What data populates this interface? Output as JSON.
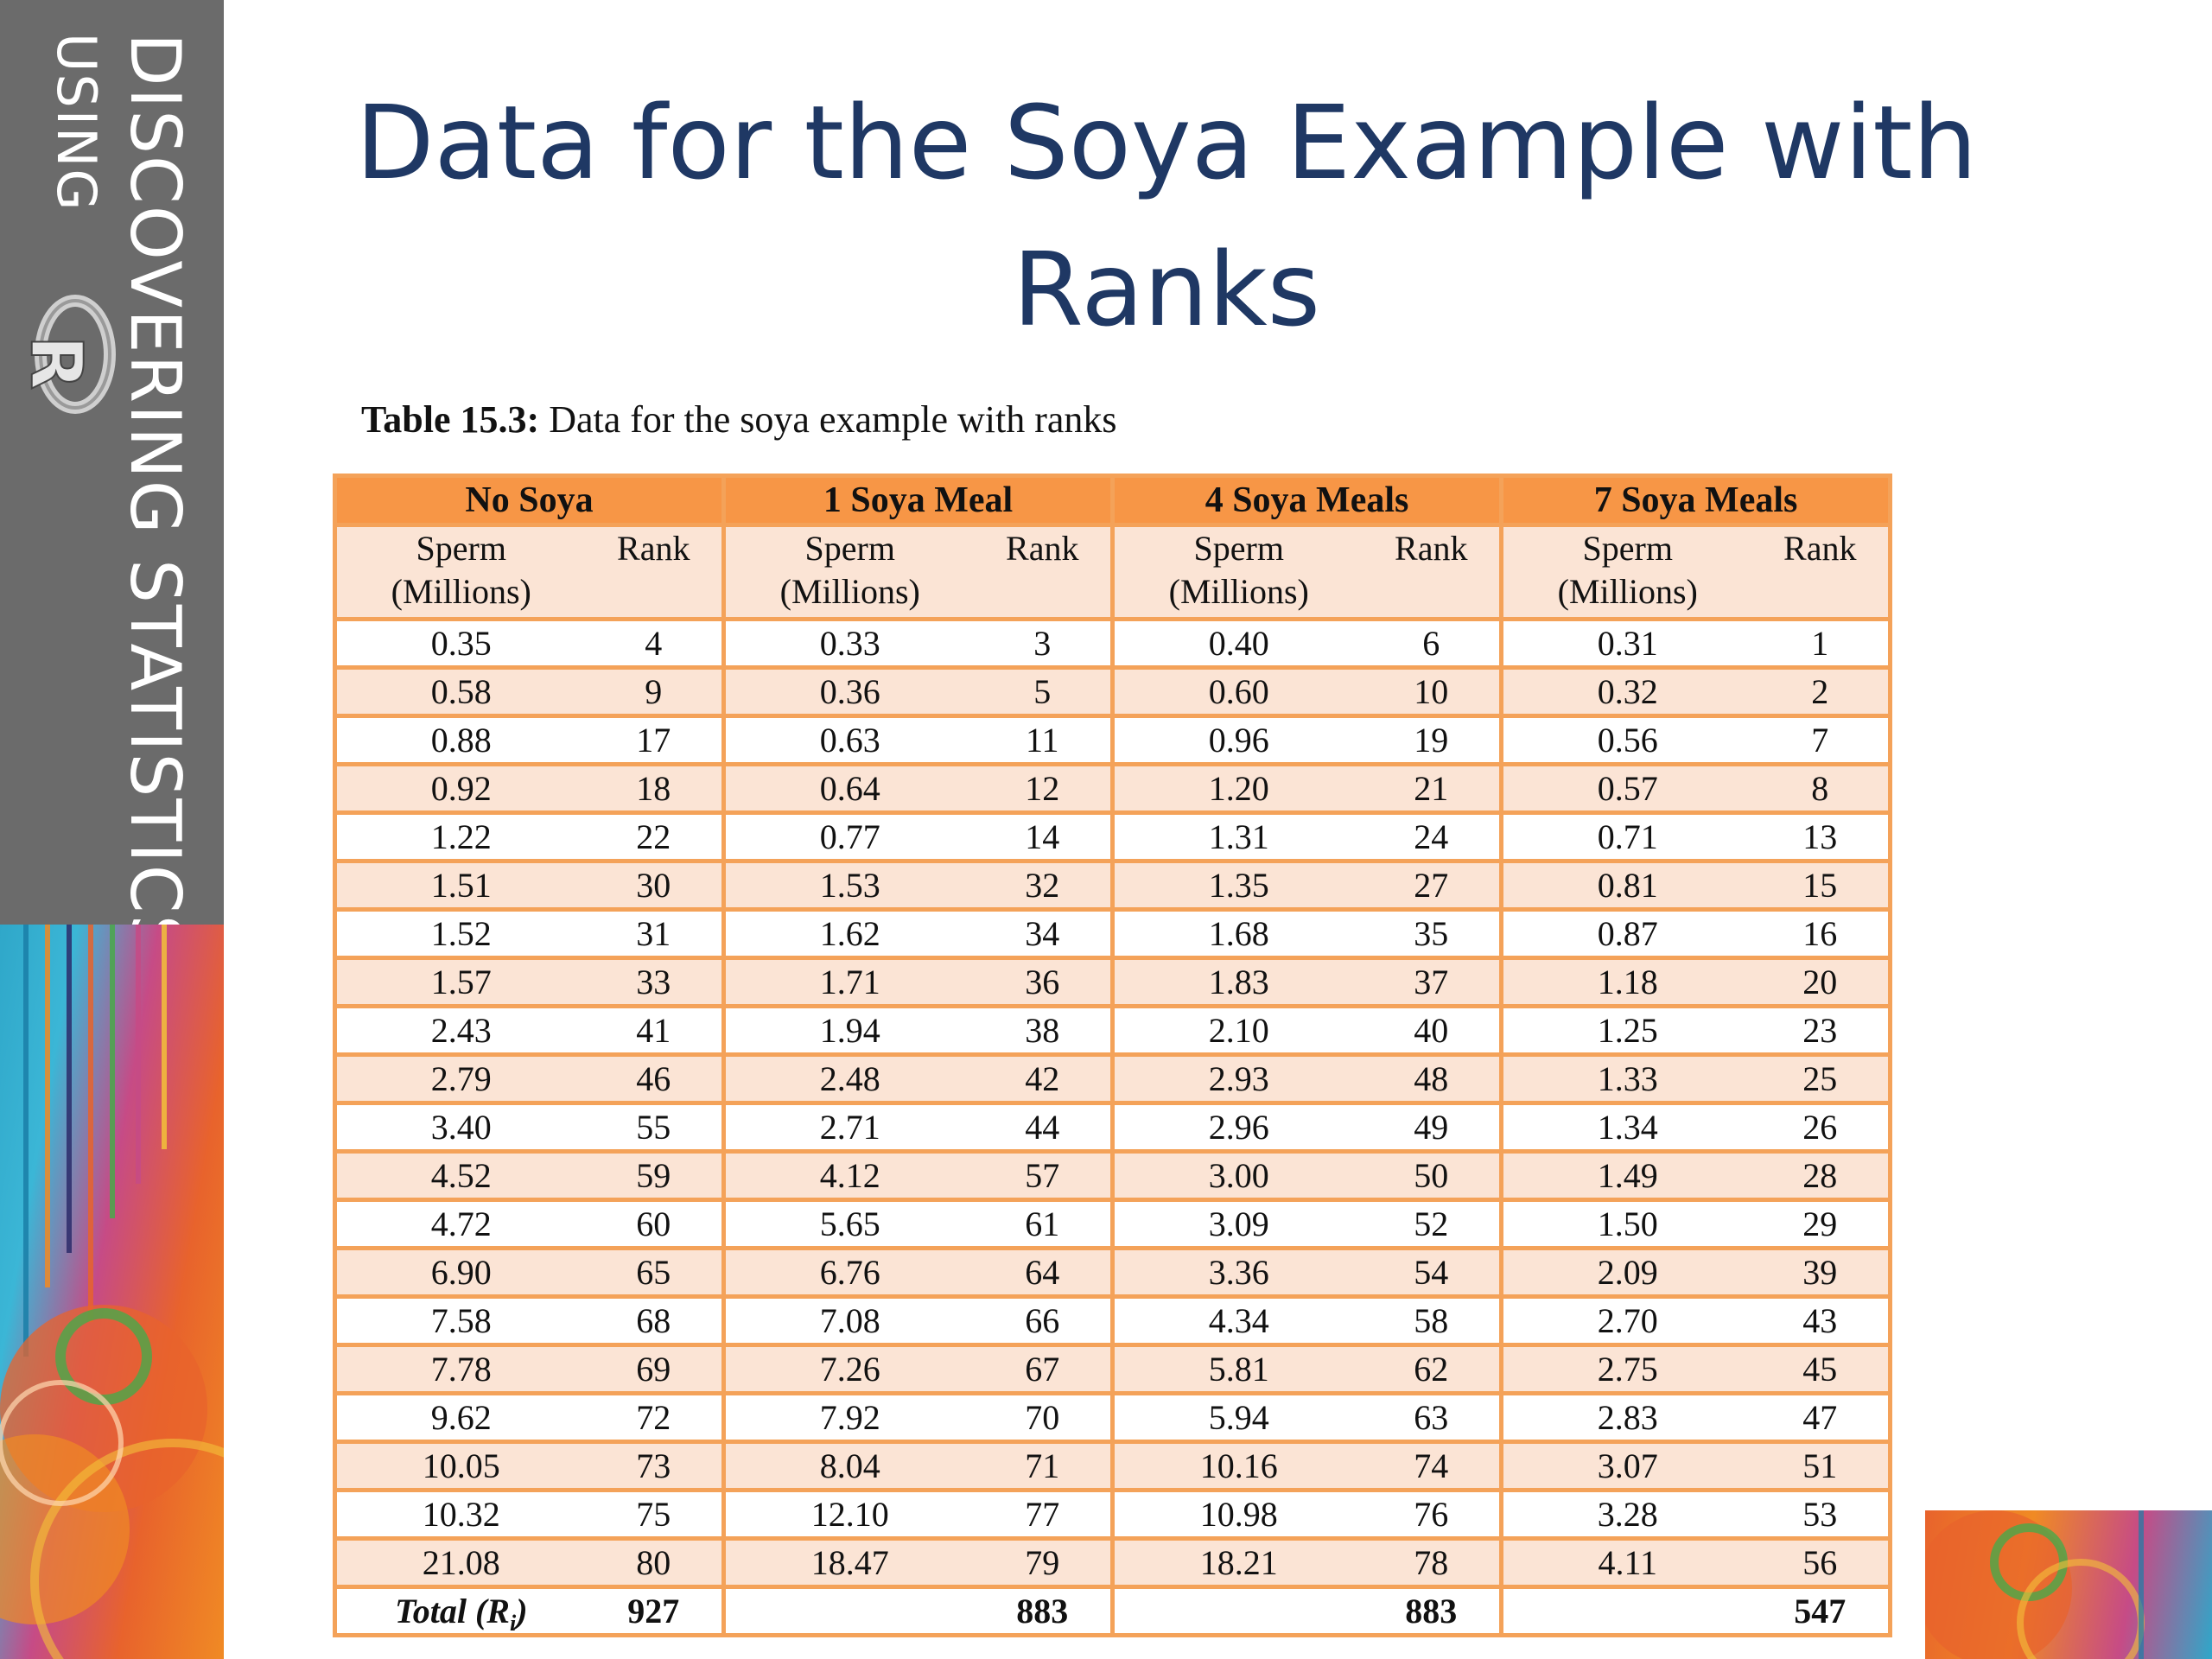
{
  "branding": {
    "line1": "DISCOVERING STATISTICS",
    "line2": "USING",
    "logo_letter": "R",
    "logo_icon": "r-logo-icon"
  },
  "title": {
    "line1": "Data for the Soya Example with",
    "line2": "Ranks"
  },
  "caption": {
    "label": "Table 15.3:",
    "text": "Data for the soya example with ranks"
  },
  "table": {
    "groups": [
      "No Soya",
      "1 Soya Meal",
      "4 Soya Meals",
      "7 Soya Meals"
    ],
    "sub_headers": {
      "sperm_line1": "Sperm",
      "sperm_line2": "(Millions)",
      "rank": "Rank"
    },
    "rows": [
      [
        "0.35",
        "4",
        "0.33",
        "3",
        "0.40",
        "6",
        "0.31",
        "1"
      ],
      [
        "0.58",
        "9",
        "0.36",
        "5",
        "0.60",
        "10",
        "0.32",
        "2"
      ],
      [
        "0.88",
        "17",
        "0.63",
        "11",
        "0.96",
        "19",
        "0.56",
        "7"
      ],
      [
        "0.92",
        "18",
        "0.64",
        "12",
        "1.20",
        "21",
        "0.57",
        "8"
      ],
      [
        "1.22",
        "22",
        "0.77",
        "14",
        "1.31",
        "24",
        "0.71",
        "13"
      ],
      [
        "1.51",
        "30",
        "1.53",
        "32",
        "1.35",
        "27",
        "0.81",
        "15"
      ],
      [
        "1.52",
        "31",
        "1.62",
        "34",
        "1.68",
        "35",
        "0.87",
        "16"
      ],
      [
        "1.57",
        "33",
        "1.71",
        "36",
        "1.83",
        "37",
        "1.18",
        "20"
      ],
      [
        "2.43",
        "41",
        "1.94",
        "38",
        "2.10",
        "40",
        "1.25",
        "23"
      ],
      [
        "2.79",
        "46",
        "2.48",
        "42",
        "2.93",
        "48",
        "1.33",
        "25"
      ],
      [
        "3.40",
        "55",
        "2.71",
        "44",
        "2.96",
        "49",
        "1.34",
        "26"
      ],
      [
        "4.52",
        "59",
        "4.12",
        "57",
        "3.00",
        "50",
        "1.49",
        "28"
      ],
      [
        "4.72",
        "60",
        "5.65",
        "61",
        "3.09",
        "52",
        "1.50",
        "29"
      ],
      [
        "6.90",
        "65",
        "6.76",
        "64",
        "3.36",
        "54",
        "2.09",
        "39"
      ],
      [
        "7.58",
        "68",
        "7.08",
        "66",
        "4.34",
        "58",
        "2.70",
        "43"
      ],
      [
        "7.78",
        "69",
        "7.26",
        "67",
        "5.81",
        "62",
        "2.75",
        "45"
      ],
      [
        "9.62",
        "72",
        "7.92",
        "70",
        "5.94",
        "63",
        "2.83",
        "47"
      ],
      [
        "10.05",
        "73",
        "8.04",
        "71",
        "10.16",
        "74",
        "3.07",
        "51"
      ],
      [
        "10.32",
        "75",
        "12.10",
        "77",
        "10.98",
        "76",
        "3.28",
        "53"
      ],
      [
        "21.08",
        "80",
        "18.47",
        "79",
        "18.21",
        "78",
        "4.11",
        "56"
      ]
    ],
    "total": {
      "label": "Total (R",
      "label_sub": "i",
      "label_close": ")",
      "values": [
        "927",
        "883",
        "883",
        "547"
      ]
    }
  },
  "colors": {
    "title": "#1f3864",
    "header_orange": "#f79646",
    "row_peach": "#fbe4d5",
    "border": "#f4a259",
    "strip_gray": "#6b6b6b"
  }
}
